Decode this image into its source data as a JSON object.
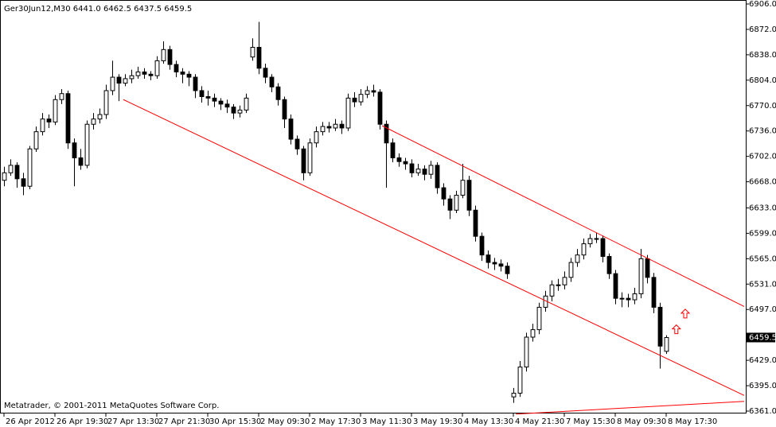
{
  "chart_data": {
    "type": "candlestick",
    "header": "Ger30Jun12,M30  6441.0 6462.5 6437.5 6459.5",
    "footer": "Metatrader, © 2001-2011 MetaQuotes Software Corp.",
    "up_color": "#ffffff",
    "down_color": "#000000",
    "line_color": "#ff0000",
    "open": [
      6670,
      6680,
      6690,
      6672,
      6662,
      6712,
      6735,
      6752,
      6748,
      6778,
      6786,
      6720,
      6700,
      6690,
      6745,
      6752,
      6758,
      6790,
      6808,
      6800,
      6806,
      6810,
      6815,
      6812,
      6810,
      6830,
      6845,
      6825,
      6815,
      6812,
      6808,
      6790,
      6782,
      6780,
      6776,
      6772,
      6768,
      6760,
      6764,
      6835,
      6848,
      6820,
      6808,
      6795,
      6778,
      6752,
      6725,
      6712,
      6680,
      6720,
      6735,
      6742,
      6740,
      6745,
      6740,
      6780,
      6775,
      6785,
      6790,
      6788,
      6745,
      6720,
      6700,
      6695,
      6692,
      6680,
      6685,
      6678,
      6690,
      6660,
      6645,
      6630,
      6650,
      6670,
      6630,
      6595,
      6570,
      6560,
      6558,
      6555,
      6380,
      6385,
      6420,
      6460,
      6470,
      6500,
      6515,
      6530,
      6530,
      6540,
      6560,
      6570,
      6585,
      6592,
      6592,
      6568,
      6545,
      6512,
      6512,
      6510,
      6518,
      6565,
      6540,
      6500,
      6441
    ],
    "high": [
      6688,
      6698,
      6694,
      6680,
      6716,
      6742,
      6760,
      6758,
      6784,
      6792,
      6790,
      6726,
      6712,
      6750,
      6760,
      6766,
      6798,
      6830,
      6812,
      6812,
      6818,
      6822,
      6820,
      6816,
      6836,
      6856,
      6850,
      6830,
      6820,
      6816,
      6812,
      6796,
      6790,
      6786,
      6780,
      6778,
      6772,
      6770,
      6786,
      6860,
      6882,
      6826,
      6812,
      6800,
      6782,
      6758,
      6730,
      6716,
      6726,
      6742,
      6748,
      6748,
      6752,
      6750,
      6786,
      6788,
      6792,
      6796,
      6798,
      6792,
      6750,
      6726,
      6706,
      6700,
      6698,
      6692,
      6690,
      6696,
      6694,
      6666,
      6650,
      6656,
      6692,
      6676,
      6636,
      6600,
      6576,
      6566,
      6564,
      6560,
      6392,
      6428,
      6466,
      6478,
      6506,
      6522,
      6536,
      6538,
      6548,
      6566,
      6578,
      6592,
      6598,
      6600,
      6596,
      6572,
      6550,
      6520,
      6518,
      6526,
      6578,
      6570,
      6546,
      6506,
      6462.5
    ],
    "low": [
      6662,
      6676,
      6660,
      6650,
      6658,
      6708,
      6730,
      6740,
      6744,
      6772,
      6712,
      6662,
      6684,
      6686,
      6738,
      6746,
      6752,
      6784,
      6776,
      6796,
      6800,
      6806,
      6806,
      6804,
      6806,
      6826,
      6818,
      6808,
      6800,
      6796,
      6780,
      6774,
      6770,
      6768,
      6764,
      6760,
      6752,
      6754,
      6760,
      6830,
      6812,
      6800,
      6788,
      6770,
      6740,
      6718,
      6704,
      6670,
      6676,
      6714,
      6730,
      6734,
      6736,
      6732,
      6736,
      6768,
      6770,
      6780,
      6782,
      6738,
      6660,
      6694,
      6688,
      6684,
      6674,
      6676,
      6670,
      6672,
      6652,
      6636,
      6618,
      6626,
      6646,
      6622,
      6588,
      6562,
      6552,
      6550,
      6548,
      6538,
      6372,
      6380,
      6414,
      6454,
      6464,
      6494,
      6508,
      6522,
      6524,
      6534,
      6554,
      6564,
      6580,
      6586,
      6560,
      6538,
      6504,
      6500,
      6500,
      6504,
      6512,
      6532,
      6492,
      6418,
      6437.5
    ],
    "close": [
      6680,
      6690,
      6672,
      6662,
      6712,
      6735,
      6752,
      6748,
      6778,
      6786,
      6720,
      6700,
      6690,
      6745,
      6752,
      6758,
      6790,
      6808,
      6800,
      6806,
      6810,
      6815,
      6812,
      6810,
      6830,
      6845,
      6825,
      6815,
      6812,
      6808,
      6790,
      6782,
      6780,
      6776,
      6772,
      6768,
      6760,
      6764,
      6780,
      6848,
      6820,
      6808,
      6795,
      6778,
      6752,
      6725,
      6712,
      6680,
      6720,
      6735,
      6742,
      6740,
      6745,
      6740,
      6780,
      6775,
      6785,
      6790,
      6788,
      6745,
      6720,
      6700,
      6695,
      6692,
      6680,
      6685,
      6678,
      6690,
      6660,
      6645,
      6630,
      6650,
      6670,
      6630,
      6595,
      6570,
      6560,
      6558,
      6555,
      6545,
      6385,
      6420,
      6460,
      6470,
      6500,
      6515,
      6530,
      6530,
      6540,
      6560,
      6570,
      6585,
      6592,
      6592,
      6568,
      6545,
      6512,
      6512,
      6510,
      6518,
      6565,
      6540,
      6500,
      6448,
      6459.5
    ],
    "xlim": [
      -0.5,
      116.5
    ],
    "xticks": [
      {
        "value": 0,
        "label": "26 Apr 2012"
      },
      {
        "value": 8,
        "label": "26 Apr 19:30"
      },
      {
        "value": 16,
        "label": "27 Apr 13:30"
      },
      {
        "value": 24,
        "label": "27 Apr 21:30"
      },
      {
        "value": 32,
        "label": "30 Apr 15:30"
      },
      {
        "value": 40,
        "label": "2 May 09:30"
      },
      {
        "value": 48,
        "label": "2 May 17:30"
      },
      {
        "value": 56,
        "label": "3 May 11:30"
      },
      {
        "value": 64,
        "label": "3 May 19:30"
      },
      {
        "value": 72,
        "label": "4 May 13:30"
      },
      {
        "value": 80,
        "label": "4 May 21:30"
      },
      {
        "value": 88,
        "label": "7 May 15:30"
      },
      {
        "value": 96,
        "label": "8 May 09:30"
      },
      {
        "value": 104,
        "label": "8 May 17:30"
      }
    ],
    "ylim": [
      6361,
      6906
    ],
    "yticks": [
      {
        "value": 6906,
        "label": "6906.0"
      },
      {
        "value": 6872,
        "label": "6872.0"
      },
      {
        "value": 6838,
        "label": "6838.0"
      },
      {
        "value": 6804,
        "label": "6804.0"
      },
      {
        "value": 6770,
        "label": "6770.0"
      },
      {
        "value": 6736,
        "label": "6736.0"
      },
      {
        "value": 6702,
        "label": "6702.0"
      },
      {
        "value": 6668,
        "label": "6668.0"
      },
      {
        "value": 6633,
        "label": "6633.0"
      },
      {
        "value": 6599,
        "label": "6599.0"
      },
      {
        "value": 6565,
        "label": "6565.0"
      },
      {
        "value": 6531,
        "label": "6531.0"
      },
      {
        "value": 6497,
        "label": "6497.0"
      },
      {
        "value": 6429,
        "label": "6429.0"
      },
      {
        "value": 6395,
        "label": "6395.0"
      },
      {
        "value": 6361,
        "label": "6361.0"
      }
    ],
    "trendlines": [
      {
        "x1": 18.75,
        "y1": 6778,
        "x2": 116.25,
        "y2": 6382
      },
      {
        "x1": 59.4,
        "y1": 6743,
        "x2": 116.25,
        "y2": 6501
      },
      {
        "x1": 80.4,
        "y1": 6357,
        "x2": 116.25,
        "y2": 6374
      }
    ],
    "arrows": [
      {
        "x": 107,
        "y": 6491
      },
      {
        "x": 105.6,
        "y": 6470
      }
    ]
  }
}
